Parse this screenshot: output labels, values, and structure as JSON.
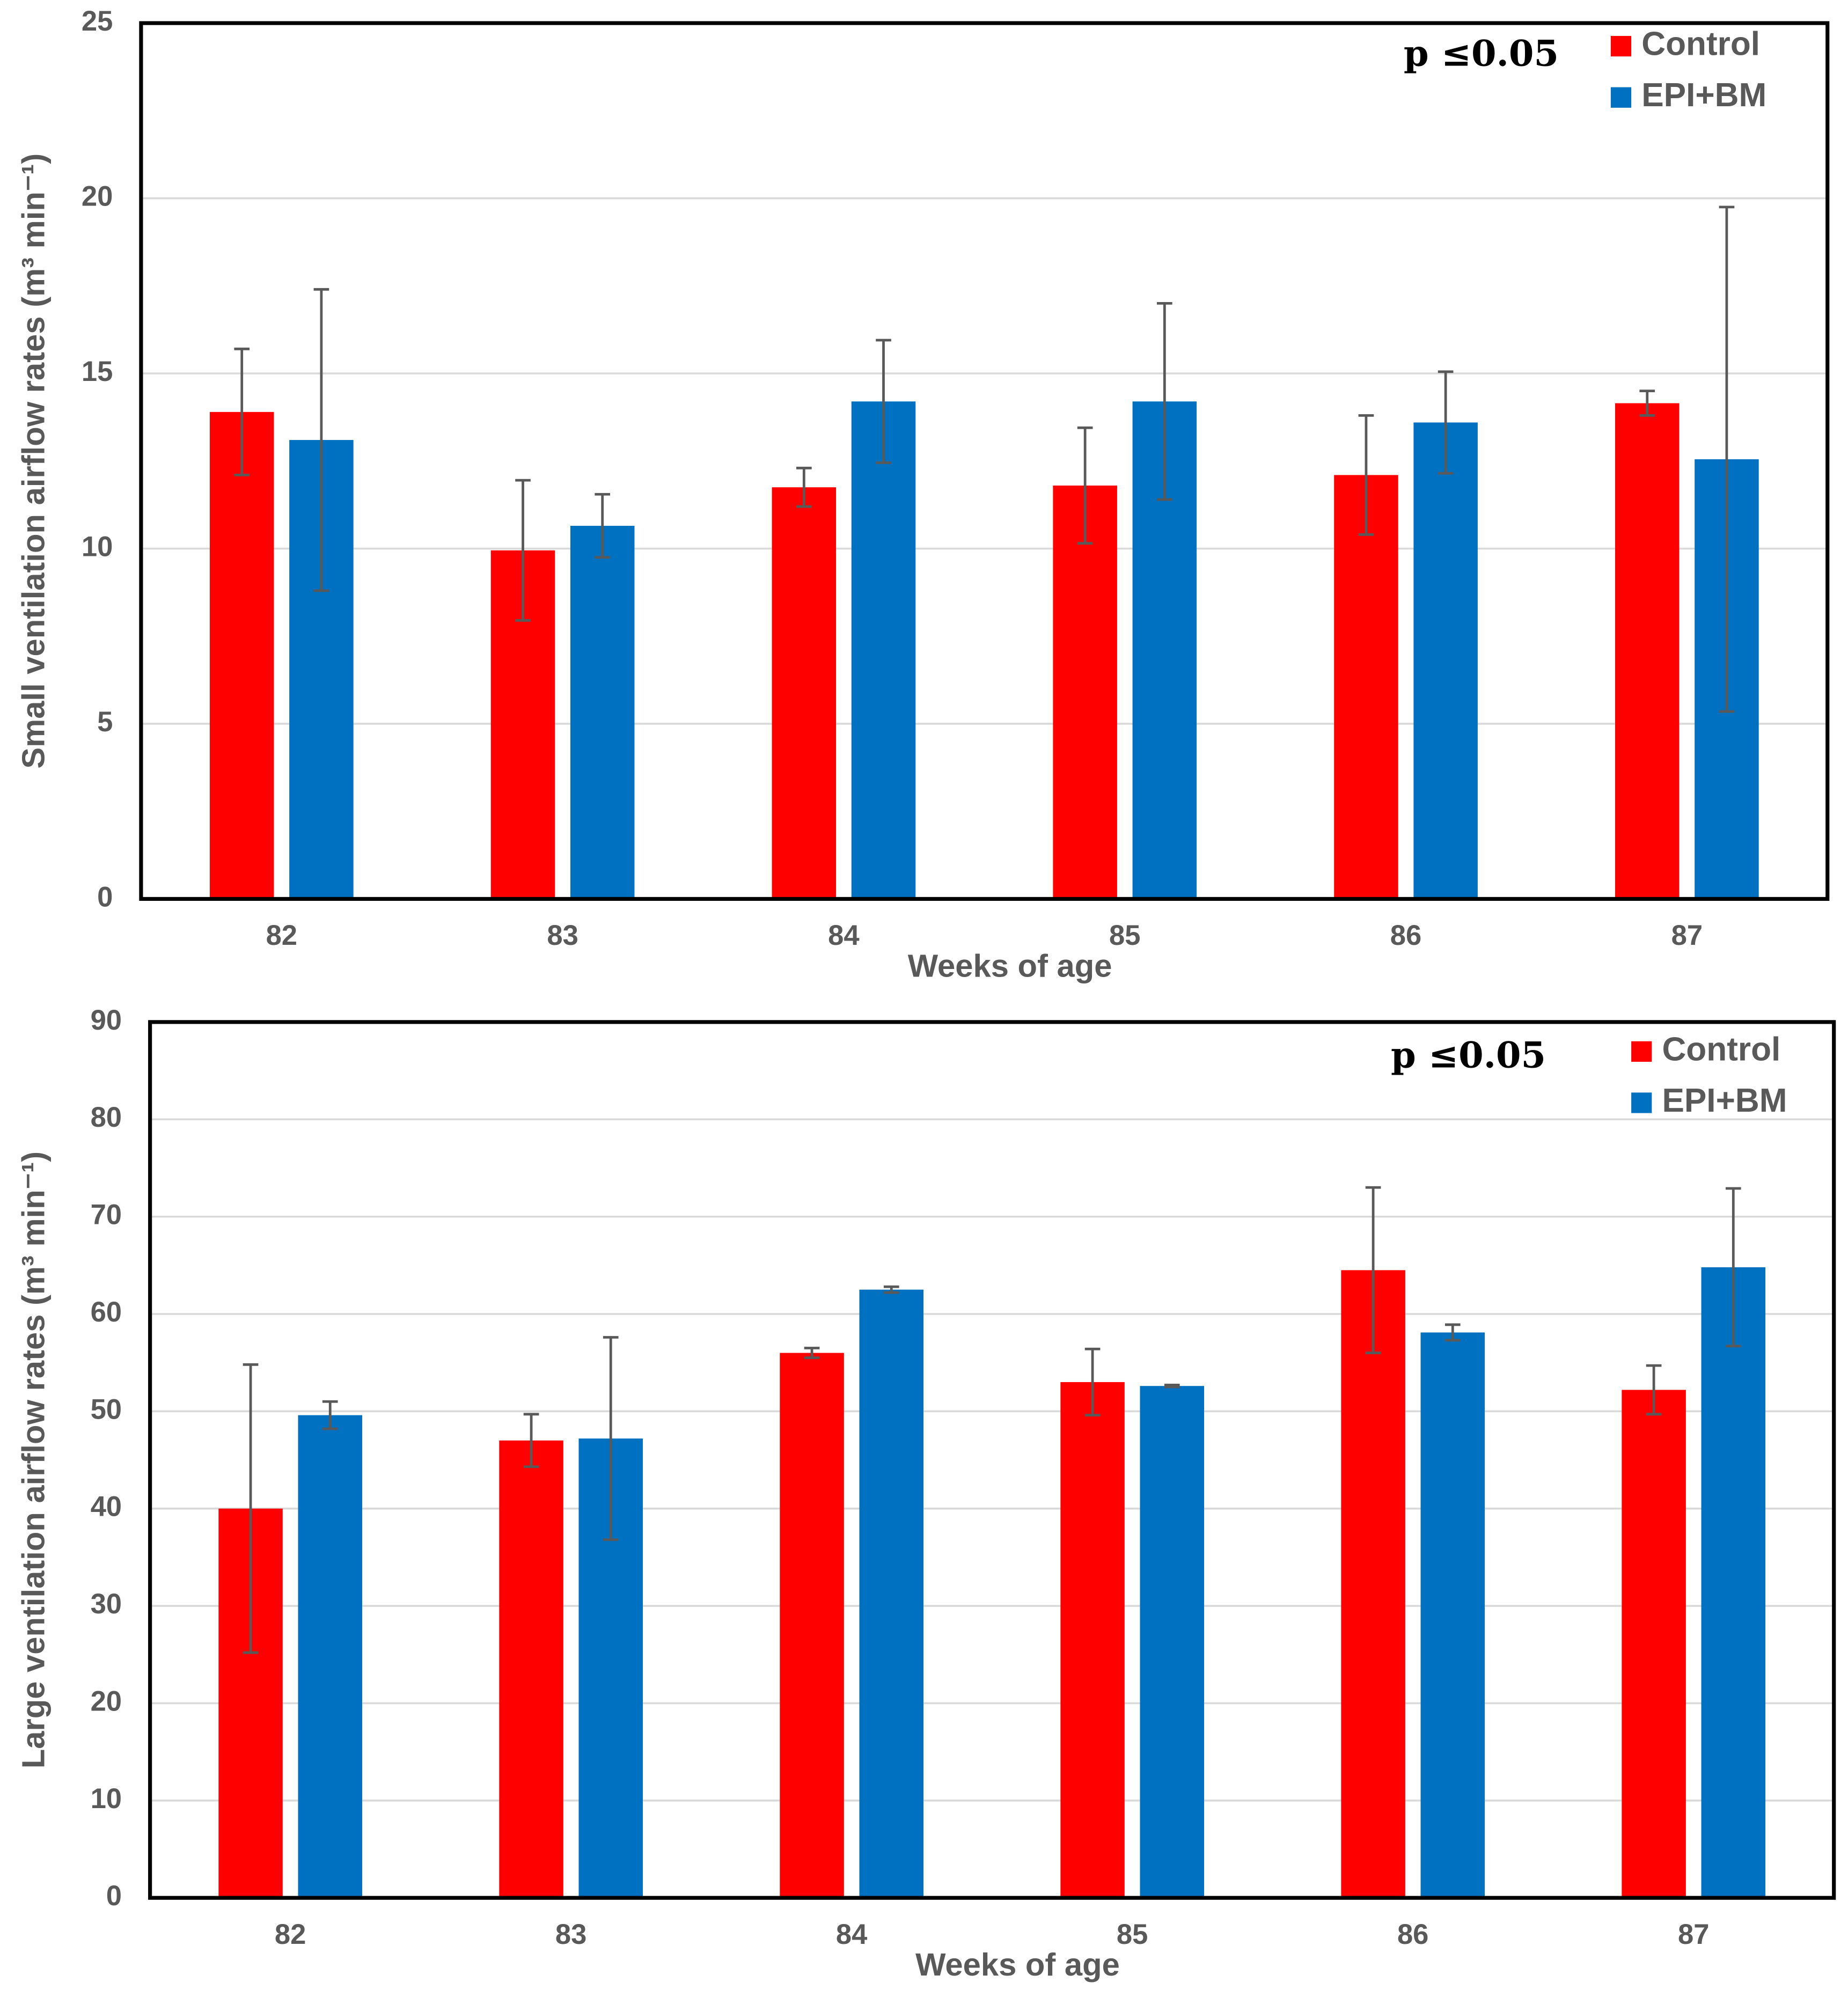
{
  "chart_data": [
    {
      "type": "bar",
      "annotation": "p ≤0.05",
      "y_label": "Small ventilation airflow rates (m³ min⁻¹)",
      "x_label": "Weeks of age",
      "categories": [
        "82",
        "83",
        "84",
        "85",
        "86",
        "87"
      ],
      "series": [
        {
          "name": "Control",
          "color": "#ff0000",
          "values": [
            13.9,
            9.95,
            11.75,
            11.8,
            12.1,
            14.15
          ],
          "errors": [
            1.8,
            2.0,
            0.55,
            1.65,
            1.7,
            0.35
          ]
        },
        {
          "name": "EPI+BM",
          "color": "#0070c0",
          "values": [
            13.1,
            10.65,
            14.2,
            14.2,
            13.6,
            12.55
          ],
          "errors": [
            4.3,
            0.9,
            1.75,
            2.8,
            1.45,
            7.2
          ]
        }
      ],
      "ylim": [
        0,
        25
      ],
      "yticks": [
        0,
        5,
        10,
        15,
        20,
        25
      ],
      "grid": true,
      "legend": "upper right"
    },
    {
      "type": "bar",
      "annotation": "p ≤0.05",
      "y_label": "Large ventilation airflow rates (m³ min⁻¹)",
      "x_label": "Weeks of age",
      "categories": [
        "82",
        "83",
        "84",
        "85",
        "86",
        "87"
      ],
      "series": [
        {
          "name": "Control",
          "color": "#ff0000",
          "values": [
            40,
            47,
            56,
            53,
            64.5,
            52.2
          ],
          "errors": [
            14.8,
            2.7,
            0.5,
            3.4,
            8.5,
            2.5
          ]
        },
        {
          "name": "EPI+BM",
          "color": "#0070c0",
          "values": [
            49.6,
            47.2,
            62.5,
            52.6,
            58.1,
            64.8
          ],
          "errors": [
            1.4,
            10.4,
            0.3,
            0.1,
            0.8,
            8.1
          ]
        }
      ],
      "ylim": [
        0,
        90
      ],
      "yticks": [
        0,
        10,
        20,
        30,
        40,
        50,
        60,
        70,
        80,
        90
      ],
      "grid": true,
      "legend": "upper right"
    }
  ]
}
